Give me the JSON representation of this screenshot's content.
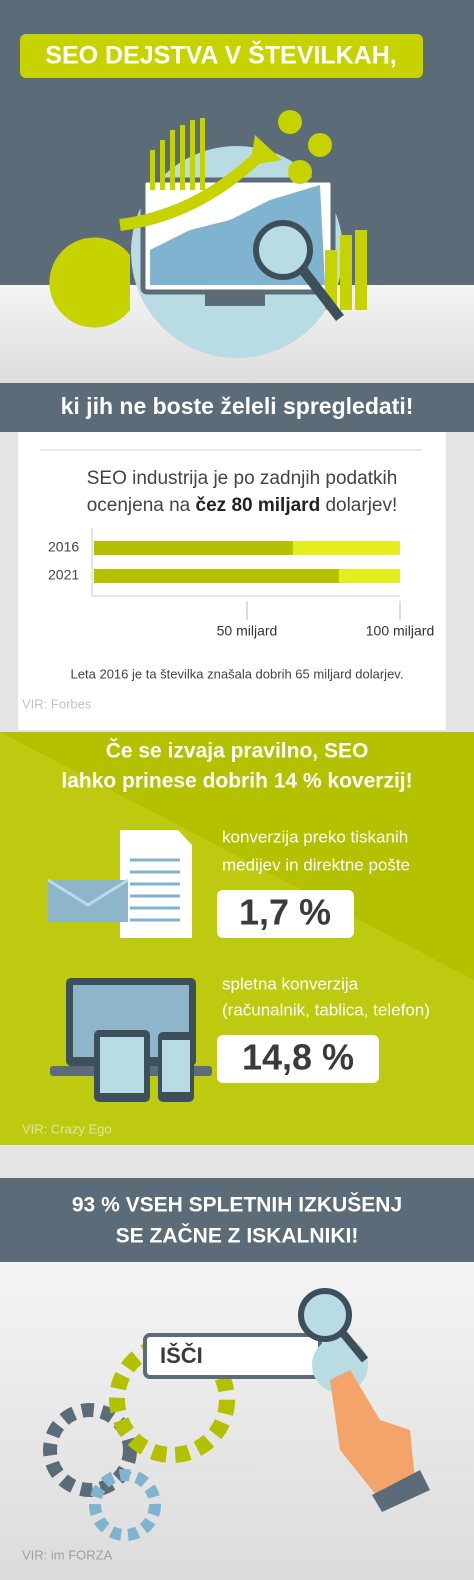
{
  "header": {
    "title": "SEO DEJSTVA V ŠTEVILKAH,",
    "subtitle": "ki jih ne boste želeli spregledati!"
  },
  "market": {
    "line1": "SEO industrija je po zadnjih podatkih",
    "line2_before": "ocenjena na ",
    "line2_bold": "čez 80 miljard",
    "line2_after": " dolarjev!",
    "chart": {
      "categories": [
        "2016",
        "2021"
      ],
      "values": [
        65,
        80
      ],
      "xlim": [
        0,
        100
      ],
      "xticks": [
        {
          "value": 50,
          "label": "50 miljard"
        },
        {
          "value": 100,
          "label": "100 miljard"
        }
      ]
    },
    "note": "Leta 2016 je ta številka znašala dobrih 65 miljard dolarjev.",
    "source": "VIR: Forbes"
  },
  "conversion": {
    "heading": [
      "Če se izvaja pravilno, SEO",
      "lahko prinese dobrih 14 % koverzij!"
    ],
    "items": [
      {
        "label": [
          "konverzija preko tiskanih",
          "medijev in direktne pošte"
        ],
        "value": "1,7 %"
      },
      {
        "label": [
          "spletna konverzija",
          "(računalnik, tablica, telefon)"
        ],
        "value": "14,8 %"
      }
    ],
    "source": "VIR: Crazy Ego"
  },
  "search": {
    "heading": [
      "93 % VSEH SPLETNIH IZKUŠENJ",
      "SE ZAČNE Z ISKALNIKI!"
    ],
    "button": "IŠČI",
    "source": "VIR: im FORZA"
  }
}
